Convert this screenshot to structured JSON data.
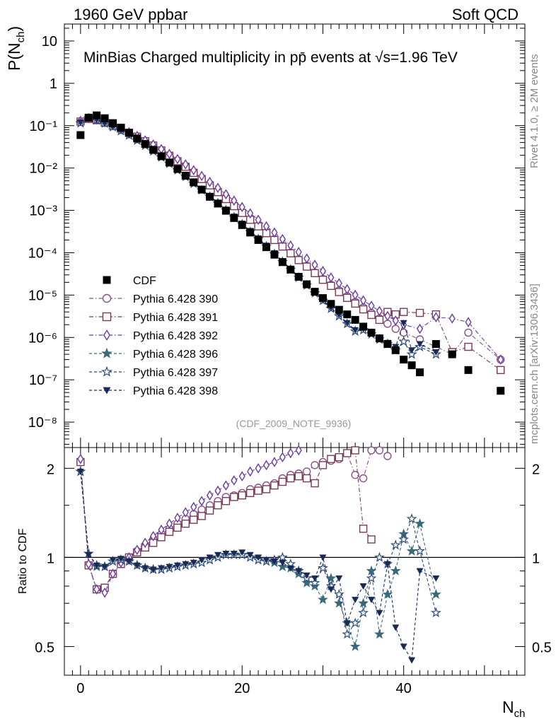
{
  "header": {
    "left": "1960 GeV ppbar",
    "right": "Soft QCD"
  },
  "side_labels": {
    "top": "Rivet 4.1.0, ≥ 2M events",
    "bottom": "mcplots.cern.ch [arXiv:1306.3436]"
  },
  "chart_data": {
    "type": "scatter",
    "title": "MinBias Charged multiplicity in pp̄ events at √s=1.96 TeV",
    "analysis_tag": "(CDF_2009_NOTE_9936)",
    "xlabel": "N",
    "xlabel_sub": "ch",
    "ylabel": "P(N",
    "ylabel_sub": "ch",
    "ylabel_tail": ")",
    "ratio_ylabel": "Ratio to CDF",
    "xlim": [
      -2,
      55
    ],
    "ylim_log": [
      -8.6,
      1.4
    ],
    "ratio_ylim": [
      0.4,
      2.35
    ],
    "x_ticks": [
      0,
      20,
      40
    ],
    "y_ticks": [
      {
        "exp": 1,
        "label": "10"
      },
      {
        "exp": 0,
        "label": "1"
      },
      {
        "exp": -1,
        "label": "10⁻¹"
      },
      {
        "exp": -2,
        "label": "10⁻²"
      },
      {
        "exp": -3,
        "label": "10⁻³"
      },
      {
        "exp": -4,
        "label": "10⁻⁴"
      },
      {
        "exp": -5,
        "label": "10⁻⁵"
      },
      {
        "exp": -6,
        "label": "10⁻⁶"
      },
      {
        "exp": -7,
        "label": "10⁻⁷"
      },
      {
        "exp": -8,
        "label": "10⁻⁸"
      }
    ],
    "ratio_ticks": [
      {
        "v": 2,
        "label": "2"
      },
      {
        "v": 1,
        "label": "1"
      },
      {
        "v": 0.5,
        "label": "0.5"
      }
    ],
    "data": {
      "name": "CDF",
      "x": [
        0,
        1,
        2,
        3,
        4,
        5,
        6,
        7,
        8,
        9,
        10,
        11,
        12,
        13,
        14,
        15,
        16,
        17,
        18,
        19,
        20,
        21,
        22,
        23,
        24,
        25,
        26,
        27,
        28,
        29,
        30,
        31,
        32,
        33,
        34,
        35,
        36,
        37,
        38,
        39,
        40,
        41,
        42,
        44,
        46,
        48,
        52
      ],
      "y": [
        0.06,
        0.155,
        0.175,
        0.15,
        0.115,
        0.09,
        0.068,
        0.05,
        0.037,
        0.027,
        0.019,
        0.0135,
        0.0095,
        0.0066,
        0.0046,
        0.0031,
        0.0021,
        0.00145,
        0.00098,
        0.00066,
        0.00045,
        0.0003,
        0.0002,
        0.000135,
        9e-05,
        6e-05,
        4e-05,
        2.7e-05,
        1.8e-05,
        1.2e-05,
        8.5e-06,
        6.2e-06,
        4.5e-06,
        3.5e-06,
        2.6e-06,
        1.8e-06,
        1.3e-06,
        9.5e-07,
        7e-07,
        5e-07,
        3e-07,
        2.2e-07,
        1.5e-07,
        7e-07,
        4e-07,
        1.7e-07,
        5.5e-08
      ]
    },
    "series": [
      {
        "name": "Pythia 6.428 390",
        "color": "#8a4f8d",
        "marker": "circle-open",
        "dash": "dashdot",
        "x": [
          0,
          1,
          2,
          3,
          4,
          5,
          6,
          7,
          8,
          9,
          10,
          11,
          12,
          13,
          14,
          15,
          16,
          17,
          18,
          19,
          20,
          21,
          22,
          23,
          24,
          25,
          26,
          27,
          28,
          29,
          30,
          31,
          32,
          33,
          34,
          35,
          36,
          37,
          38,
          39,
          40,
          42,
          44,
          46,
          48,
          52
        ],
        "y": [
          0.125,
          0.145,
          0.135,
          0.118,
          0.1,
          0.085,
          0.068,
          0.055,
          0.043,
          0.034,
          0.026,
          0.0198,
          0.0148,
          0.011,
          0.0079,
          0.0057,
          0.004,
          0.0028,
          0.0019,
          0.0013,
          0.0009,
          0.00062,
          0.00043,
          0.0003,
          0.00021,
          0.000145,
          0.0001,
          7e-05,
          4.9e-05,
          3.4e-05,
          2.4e-05,
          1.75e-05,
          1.29e-05,
          9.4e-06,
          6.9e-06,
          5.1e-06,
          3.8e-06,
          2.8e-06,
          2.1e-06,
          1.6e-06,
          1.3e-06,
          9e-07,
          6e-07,
          4e-07,
          1.3e-06,
          3e-07
        ],
        "ratio": [
          2.1,
          0.94,
          0.78,
          0.79,
          0.88,
          0.95,
          1.0,
          1.05,
          1.1,
          1.15,
          1.2,
          1.25,
          1.3,
          1.35,
          1.4,
          1.45,
          1.5,
          1.55,
          1.6,
          1.62,
          1.65,
          1.7,
          1.72,
          1.75,
          1.78,
          1.85,
          1.9,
          1.92,
          1.95,
          2.05,
          2.1,
          2.12,
          2.15,
          2.25,
          1.9,
          1.85,
          2.3,
          2.3,
          2.2
        ]
      },
      {
        "name": "Pythia 6.428 391",
        "color": "#7a3a55",
        "marker": "square-open",
        "dash": "dashdot",
        "x": [
          0,
          1,
          2,
          3,
          4,
          5,
          6,
          7,
          8,
          9,
          10,
          11,
          12,
          13,
          14,
          15,
          16,
          17,
          18,
          19,
          20,
          21,
          22,
          23,
          24,
          25,
          26,
          27,
          28,
          29,
          30,
          31,
          32,
          33,
          34,
          35,
          36,
          37,
          38,
          39,
          40,
          42,
          44,
          46,
          48,
          52
        ],
        "y": [
          0.125,
          0.145,
          0.135,
          0.118,
          0.1,
          0.085,
          0.068,
          0.055,
          0.043,
          0.034,
          0.026,
          0.0195,
          0.0145,
          0.0107,
          0.0077,
          0.0055,
          0.0039,
          0.0027,
          0.00185,
          0.00126,
          0.00087,
          0.0006,
          0.00042,
          0.00029,
          0.0002,
          0.00014,
          9.7e-05,
          6.7e-05,
          4.7e-05,
          3.3e-05,
          2.3e-05,
          1.65e-05,
          1.18e-05,
          8.6e-06,
          6.3e-06,
          4.6e-06,
          3.4e-06,
          2.6e-06,
          4e-06,
          3.5e-06,
          4e-06,
          3.8e-06,
          3.5e-06,
          4.5e-07,
          6e-07,
          1.7e-07
        ],
        "ratio": [
          2.1,
          0.94,
          0.78,
          0.79,
          0.88,
          0.95,
          1.0,
          1.04,
          1.08,
          1.12,
          1.17,
          1.22,
          1.26,
          1.3,
          1.34,
          1.38,
          1.44,
          1.5,
          1.55,
          1.6,
          1.62,
          1.65,
          1.68,
          1.7,
          1.75,
          1.8,
          1.85,
          1.88,
          1.85,
          1.78,
          2.05,
          2.15,
          2.18,
          2.25,
          2.3,
          1.25,
          1.15
        ]
      },
      {
        "name": "Pythia 6.428 392",
        "color": "#6a3aa8",
        "marker": "diamond-open",
        "dash": "dashdot",
        "x": [
          0,
          1,
          2,
          3,
          4,
          5,
          6,
          7,
          8,
          9,
          10,
          11,
          12,
          13,
          14,
          15,
          16,
          17,
          18,
          19,
          20,
          21,
          22,
          23,
          24,
          25,
          26,
          27,
          28,
          29,
          30,
          31,
          32,
          33,
          34,
          35,
          36,
          37,
          38,
          39,
          40,
          42,
          44,
          46,
          48,
          52
        ],
        "y": [
          0.13,
          0.15,
          0.14,
          0.12,
          0.102,
          0.087,
          0.07,
          0.057,
          0.045,
          0.036,
          0.028,
          0.0215,
          0.0163,
          0.0122,
          0.0089,
          0.0065,
          0.0047,
          0.0034,
          0.0024,
          0.0017,
          0.0012,
          0.00085,
          0.0006,
          0.00042,
          0.0003,
          0.00021,
          0.000148,
          0.000104,
          7.3e-05,
          5.2e-05,
          3.7e-05,
          2.6e-05,
          1.9e-05,
          1.38e-05,
          1.01e-05,
          7.5e-06,
          5.6e-06,
          4.2e-06,
          3.2e-06,
          2.5e-06,
          2e-06,
          1.6e-06,
          3e-06,
          2.8e-06,
          2.3e-06,
          3e-07
        ],
        "ratio": [
          2.15,
          0.95,
          0.78,
          0.76,
          0.88,
          0.96,
          1.0,
          1.06,
          1.12,
          1.18,
          1.24,
          1.3,
          1.36,
          1.42,
          1.48,
          1.55,
          1.62,
          1.68,
          1.75,
          1.82,
          1.88,
          1.95,
          2.0,
          2.05,
          2.1,
          2.18,
          2.25,
          2.3
        ]
      },
      {
        "name": "Pythia 6.428 396",
        "color": "#3a6a7a",
        "marker": "star-filled",
        "dash": "dashed",
        "x": [
          0,
          1,
          2,
          3,
          4,
          5,
          6,
          7,
          8,
          9,
          10,
          11,
          12,
          13,
          14,
          15,
          16,
          17,
          18,
          19,
          20,
          21,
          22,
          23,
          24,
          25,
          26,
          27,
          28,
          29,
          30,
          31,
          32,
          33,
          34,
          35,
          36,
          37,
          38,
          39,
          40,
          41,
          42,
          44
        ],
        "y": [
          0.115,
          0.15,
          0.135,
          0.113,
          0.093,
          0.075,
          0.059,
          0.045,
          0.034,
          0.025,
          0.018,
          0.0127,
          0.0089,
          0.0062,
          0.0043,
          0.003,
          0.0021,
          0.00147,
          0.00101,
          0.00069,
          0.00047,
          0.00031,
          0.00021,
          0.000141,
          9.3e-05,
          6.1e-05,
          4e-05,
          2.6e-05,
          1.7e-05,
          1.12e-05,
          7.4e-06,
          4.8e-06,
          3.2e-06,
          2.1e-06,
          1.4e-06,
          1.5e-06,
          1.2e-06,
          9e-07,
          7e-07,
          5e-07,
          8e-07,
          4e-07,
          6e-07,
          4e-07
        ],
        "ratio": [
          1.95,
          1.03,
          0.93,
          0.93,
          0.97,
          0.98,
          0.97,
          0.94,
          0.92,
          0.91,
          0.91,
          0.92,
          0.93,
          0.94,
          0.95,
          0.96,
          0.98,
          1.0,
          1.02,
          1.02,
          1.02,
          1.0,
          0.98,
          0.97,
          0.96,
          0.93,
          0.92,
          0.88,
          0.82,
          0.8,
          0.72,
          0.85,
          0.7,
          0.6,
          0.5,
          0.7,
          0.9,
          0.55,
          0.75,
          0.9,
          1.2,
          1.05,
          1.3,
          0.75
        ]
      },
      {
        "name": "Pythia 6.428 397",
        "color": "#2a4a7a",
        "marker": "star-open",
        "dash": "dashed",
        "x": [
          0,
          1,
          2,
          3,
          4,
          5,
          6,
          7,
          8,
          9,
          10,
          11,
          12,
          13,
          14,
          15,
          16,
          17,
          18,
          19,
          20,
          21,
          22,
          23,
          24,
          25,
          26,
          27,
          28,
          29,
          30,
          31,
          32,
          33,
          34,
          35,
          36,
          37,
          38,
          39,
          40,
          41,
          42,
          44
        ],
        "y": [
          0.115,
          0.15,
          0.135,
          0.113,
          0.093,
          0.075,
          0.059,
          0.045,
          0.034,
          0.025,
          0.018,
          0.0127,
          0.0089,
          0.0062,
          0.0043,
          0.003,
          0.0021,
          0.00147,
          0.00101,
          0.00069,
          0.00047,
          0.00031,
          0.00021,
          0.000141,
          9.3e-05,
          6.1e-05,
          4e-05,
          2.6e-05,
          1.7e-05,
          1.12e-05,
          7.4e-06,
          4.8e-06,
          3.2e-06,
          2.1e-06,
          1.4e-06,
          1.5e-06,
          1.2e-06,
          9e-07,
          7e-07,
          5e-07,
          8e-07,
          4e-07,
          6e-07,
          4e-07
        ],
        "ratio": [
          1.95,
          1.03,
          0.94,
          0.93,
          0.97,
          0.98,
          0.97,
          0.94,
          0.92,
          0.91,
          0.91,
          0.92,
          0.93,
          0.94,
          0.95,
          0.96,
          0.98,
          1.0,
          1.02,
          1.02,
          1.02,
          1.0,
          0.98,
          0.97,
          0.98,
          1.0,
          0.95,
          0.9,
          0.85,
          0.82,
          0.92,
          0.8,
          0.75,
          0.55,
          0.6,
          0.65,
          0.85,
          1.0,
          0.95,
          1.1,
          1.15,
          1.35,
          1.05,
          0.65
        ]
      },
      {
        "name": "Pythia 6.428 398",
        "color": "#1a2a55",
        "marker": "triangle-down-filled",
        "dash": "dashed",
        "x": [
          0,
          1,
          2,
          3,
          4,
          5,
          6,
          7,
          8,
          9,
          10,
          11,
          12,
          13,
          14,
          15,
          16,
          17,
          18,
          19,
          20,
          21,
          22,
          23,
          24,
          25,
          26,
          27,
          28,
          29,
          30,
          31,
          32,
          33,
          34,
          35,
          36,
          37,
          38,
          39,
          40,
          41,
          42,
          44
        ],
        "y": [
          0.12,
          0.155,
          0.14,
          0.115,
          0.095,
          0.076,
          0.06,
          0.046,
          0.035,
          0.026,
          0.019,
          0.0133,
          0.0093,
          0.0065,
          0.0045,
          0.0031,
          0.0022,
          0.00153,
          0.00105,
          0.00072,
          0.00049,
          0.00033,
          0.00022,
          0.000148,
          9.8e-05,
          6.4e-05,
          4.2e-05,
          2.7e-05,
          1.8e-05,
          1.18e-05,
          7.7e-06,
          5e-06,
          3.4e-06,
          2.2e-06,
          1.5e-06,
          1.6e-06,
          1.3e-06,
          9.5e-07,
          7.5e-07,
          6e-07,
          2.2e-06,
          5e-07,
          7e-07,
          4.5e-07
        ],
        "ratio": [
          1.95,
          1.02,
          0.94,
          0.93,
          0.98,
          0.99,
          0.97,
          0.94,
          0.92,
          0.91,
          0.92,
          0.93,
          0.94,
          0.95,
          0.96,
          0.98,
          1.0,
          1.02,
          1.03,
          1.03,
          1.04,
          1.02,
          1.0,
          0.98,
          0.97,
          0.96,
          0.92,
          0.9,
          0.87,
          0.85,
          1.0,
          0.78,
          0.85,
          0.6,
          0.72,
          0.8,
          0.72,
          0.65,
          0.95,
          0.58,
          0.5,
          0.45,
          0.9,
          0.85
        ]
      }
    ]
  }
}
